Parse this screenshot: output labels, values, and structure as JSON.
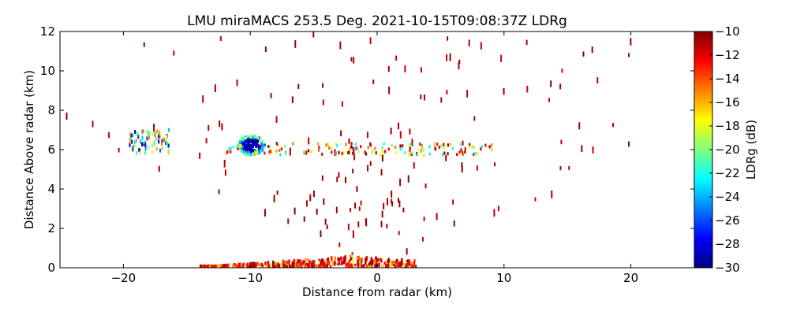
{
  "chart_data": {
    "type": "scatter",
    "title": "LMU miraMACS 253.5 Deg. 2021-10-15T09:08:37Z  LDRg",
    "xlabel": "Distance from radar (km)",
    "ylabel": "Distance Above radar  (km)",
    "xlim": [
      -25,
      25
    ],
    "ylim": [
      0,
      12
    ],
    "xticks": [
      -20,
      -10,
      0,
      10,
      20
    ],
    "yticks": [
      0,
      2,
      4,
      6,
      8,
      10,
      12
    ],
    "colorbar": {
      "label": "LDRg (dB)",
      "vmin": -30,
      "vmax": -10,
      "ticks": [
        -10,
        -12,
        -14,
        -16,
        -18,
        -20,
        -22,
        -24,
        -26,
        -28,
        -30
      ],
      "colormap": "jet"
    },
    "features": [
      {
        "name": "near-ground clutter",
        "x_range": [
          -14,
          3
        ],
        "y_range": [
          0,
          0.5
        ],
        "ldr_db": -13
      },
      {
        "name": "cloud layer strip",
        "x_range": [
          -12,
          9
        ],
        "y_range": [
          5.8,
          6.4
        ],
        "ldr_db": -19
      },
      {
        "name": "low-LDR cluster",
        "x_center": -10,
        "y_center": 6.3,
        "ldr_db": -29
      },
      {
        "name": "mixed cluster",
        "x_center": -18,
        "y_center": 6.5,
        "ldr_db": -24
      },
      {
        "name": "sparse noise",
        "x_range": [
          -24,
          24
        ],
        "y_range": [
          0,
          12
        ],
        "ldr_db": -10
      }
    ]
  }
}
